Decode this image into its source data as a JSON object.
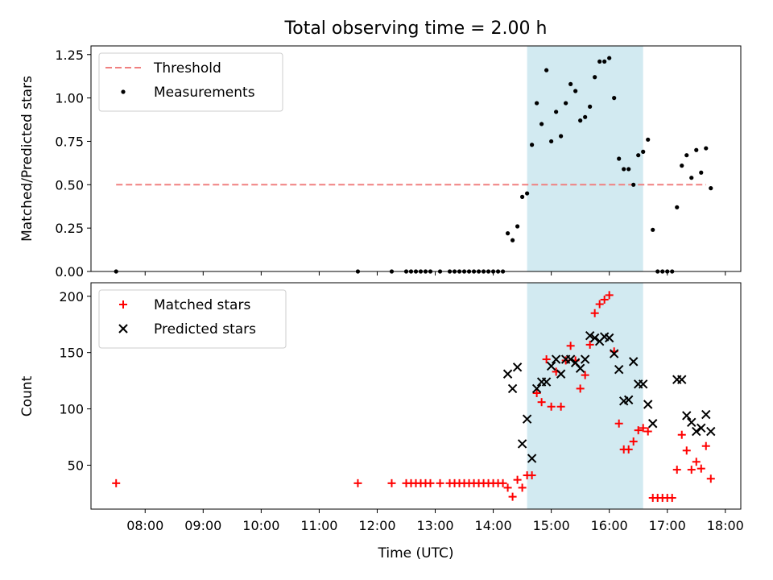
{
  "chart_data": {
    "title": "Total observing time = 2.00 h",
    "xlabel": "Time (UTC)",
    "x_ticks": [
      "08:00",
      "09:00",
      "10:00",
      "11:00",
      "12:00",
      "13:00",
      "14:00",
      "15:00",
      "16:00",
      "17:00",
      "18:00"
    ],
    "shaded_region": {
      "start": "14:35",
      "end": "16:35",
      "color": "#add8e6"
    },
    "panels": [
      {
        "type": "scatter",
        "ylabel": "Matched/Predicted stars",
        "ylim": [
          0,
          1.3
        ],
        "y_ticks": [
          "0.00",
          "0.25",
          "0.50",
          "0.75",
          "1.00",
          "1.25"
        ],
        "legend_position": "top-left",
        "threshold": {
          "name": "Threshold",
          "value": 0.5,
          "x_range": [
            "07:30",
            "17:40"
          ],
          "color": "#f08080"
        },
        "series": [
          {
            "name": "Measurements",
            "color": "#000000",
            "marker": "dot",
            "points": [
              [
                "07:30",
                0
              ],
              [
                "11:40",
                0
              ],
              [
                "12:15",
                0
              ],
              [
                "12:30",
                0
              ],
              [
                "12:35",
                0
              ],
              [
                "12:40",
                0
              ],
              [
                "12:45",
                0
              ],
              [
                "12:50",
                0
              ],
              [
                "12:55",
                0
              ],
              [
                "13:05",
                0
              ],
              [
                "13:15",
                0
              ],
              [
                "13:20",
                0
              ],
              [
                "13:25",
                0
              ],
              [
                "13:30",
                0
              ],
              [
                "13:35",
                0
              ],
              [
                "13:40",
                0
              ],
              [
                "13:45",
                0
              ],
              [
                "13:50",
                0
              ],
              [
                "13:55",
                0
              ],
              [
                "14:00",
                0
              ],
              [
                "14:05",
                0
              ],
              [
                "14:10",
                0
              ],
              [
                "14:15",
                0.22
              ],
              [
                "14:20",
                0.18
              ],
              [
                "14:25",
                0.26
              ],
              [
                "14:30",
                0.43
              ],
              [
                "14:35",
                0.45
              ],
              [
                "14:40",
                0.73
              ],
              [
                "14:45",
                0.97
              ],
              [
                "14:50",
                0.85
              ],
              [
                "14:55",
                1.16
              ],
              [
                "15:00",
                0.75
              ],
              [
                "15:05",
                0.92
              ],
              [
                "15:10",
                0.78
              ],
              [
                "15:15",
                0.97
              ],
              [
                "15:20",
                1.08
              ],
              [
                "15:25",
                1.04
              ],
              [
                "15:30",
                0.87
              ],
              [
                "15:35",
                0.89
              ],
              [
                "15:40",
                0.95
              ],
              [
                "15:45",
                1.12
              ],
              [
                "15:50",
                1.21
              ],
              [
                "15:55",
                1.21
              ],
              [
                "16:00",
                1.23
              ],
              [
                "16:05",
                1.0
              ],
              [
                "16:10",
                0.65
              ],
              [
                "16:15",
                0.59
              ],
              [
                "16:20",
                0.59
              ],
              [
                "16:25",
                0.5
              ],
              [
                "16:30",
                0.67
              ],
              [
                "16:35",
                0.69
              ],
              [
                "16:40",
                0.76
              ],
              [
                "16:45",
                0.24
              ],
              [
                "16:50",
                0
              ],
              [
                "16:55",
                0
              ],
              [
                "17:00",
                0
              ],
              [
                "17:05",
                0
              ],
              [
                "17:10",
                0.37
              ],
              [
                "17:15",
                0.61
              ],
              [
                "17:20",
                0.67
              ],
              [
                "17:25",
                0.54
              ],
              [
                "17:30",
                0.7
              ],
              [
                "17:35",
                0.57
              ],
              [
                "17:40",
                0.71
              ],
              [
                "17:45",
                0.48
              ]
            ]
          }
        ]
      },
      {
        "type": "scatter",
        "ylabel": "Count",
        "ylim": [
          11,
          212
        ],
        "y_ticks": [
          "50",
          "100",
          "150",
          "200"
        ],
        "legend_position": "top-left",
        "series": [
          {
            "name": "Matched stars",
            "color": "#ff0000",
            "marker": "plus",
            "points": [
              [
                "07:30",
                34
              ],
              [
                "11:40",
                34
              ],
              [
                "12:15",
                34
              ],
              [
                "12:30",
                34
              ],
              [
                "12:35",
                34
              ],
              [
                "12:40",
                34
              ],
              [
                "12:45",
                34
              ],
              [
                "12:50",
                34
              ],
              [
                "12:55",
                34
              ],
              [
                "13:05",
                34
              ],
              [
                "13:15",
                34
              ],
              [
                "13:20",
                34
              ],
              [
                "13:25",
                34
              ],
              [
                "13:30",
                34
              ],
              [
                "13:35",
                34
              ],
              [
                "13:40",
                34
              ],
              [
                "13:45",
                34
              ],
              [
                "13:50",
                34
              ],
              [
                "13:55",
                34
              ],
              [
                "14:00",
                34
              ],
              [
                "14:05",
                34
              ],
              [
                "14:10",
                34
              ],
              [
                "14:15",
                30
              ],
              [
                "14:20",
                22
              ],
              [
                "14:25",
                37
              ],
              [
                "14:30",
                30
              ],
              [
                "14:35",
                41
              ],
              [
                "14:40",
                41
              ],
              [
                "14:45",
                114
              ],
              [
                "14:50",
                106
              ],
              [
                "14:55",
                144
              ],
              [
                "15:00",
                102
              ],
              [
                "15:05",
                133
              ],
              [
                "15:10",
                102
              ],
              [
                "15:15",
                143
              ],
              [
                "15:20",
                156
              ],
              [
                "15:25",
                143
              ],
              [
                "15:30",
                118
              ],
              [
                "15:35",
                130
              ],
              [
                "15:40",
                157
              ],
              [
                "15:45",
                185
              ],
              [
                "15:50",
                193
              ],
              [
                "15:55",
                197
              ],
              [
                "16:00",
                201
              ],
              [
                "16:05",
                151
              ],
              [
                "16:10",
                87
              ],
              [
                "16:15",
                64
              ],
              [
                "16:20",
                64
              ],
              [
                "16:25",
                71
              ],
              [
                "16:30",
                81
              ],
              [
                "16:35",
                83
              ],
              [
                "16:40",
                80
              ],
              [
                "16:45",
                21
              ],
              [
                "16:50",
                21
              ],
              [
                "16:55",
                21
              ],
              [
                "17:00",
                21
              ],
              [
                "17:05",
                21
              ],
              [
                "17:10",
                46
              ],
              [
                "17:15",
                77
              ],
              [
                "17:20",
                63
              ],
              [
                "17:25",
                46
              ],
              [
                "17:30",
                53
              ],
              [
                "17:35",
                47
              ],
              [
                "17:40",
                67
              ],
              [
                "17:45",
                38
              ]
            ]
          },
          {
            "name": "Predicted stars",
            "color": "#000000",
            "marker": "x",
            "points": [
              [
                "14:15",
                131
              ],
              [
                "14:20",
                118
              ],
              [
                "14:25",
                137
              ],
              [
                "14:30",
                69
              ],
              [
                "14:35",
                91
              ],
              [
                "14:40",
                56
              ],
              [
                "14:45",
                118
              ],
              [
                "14:50",
                124
              ],
              [
                "14:55",
                124
              ],
              [
                "15:00",
                138
              ],
              [
                "15:05",
                144
              ],
              [
                "15:10",
                131
              ],
              [
                "15:15",
                144
              ],
              [
                "15:20",
                144
              ],
              [
                "15:25",
                141
              ],
              [
                "15:30",
                136
              ],
              [
                "15:35",
                144
              ],
              [
                "15:40",
                165
              ],
              [
                "15:45",
                163
              ],
              [
                "15:50",
                160
              ],
              [
                "15:55",
                164
              ],
              [
                "16:00",
                163
              ],
              [
                "16:05",
                149
              ],
              [
                "16:10",
                135
              ],
              [
                "16:15",
                107
              ],
              [
                "16:20",
                108
              ],
              [
                "16:25",
                142
              ],
              [
                "16:30",
                122
              ],
              [
                "16:35",
                122
              ],
              [
                "16:40",
                104
              ],
              [
                "16:45",
                87
              ],
              [
                "17:10",
                126
              ],
              [
                "17:15",
                126
              ],
              [
                "17:20",
                94
              ],
              [
                "17:25",
                88
              ],
              [
                "17:30",
                80
              ],
              [
                "17:35",
                83
              ],
              [
                "17:40",
                95
              ],
              [
                "17:45",
                80
              ]
            ]
          }
        ]
      }
    ]
  }
}
